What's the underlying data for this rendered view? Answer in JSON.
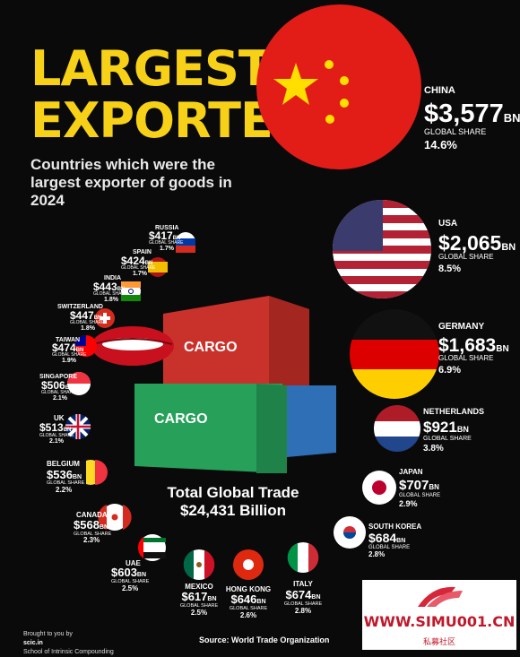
{
  "header": {
    "title_line1": "LARGEST",
    "title_line2": "EXPORTERS",
    "subtitle": "Countries which were the largest exporter of goods in 2024"
  },
  "center": {
    "total_line1": "Total Global Trade",
    "total_line2": "$24,431 Billion",
    "container_text": "CARGO"
  },
  "footer": {
    "brought_by": "Brought to you by",
    "brand": "scic.in",
    "school": "School of Intrinsic Compounding",
    "source": "Source: World Trade Organization"
  },
  "watermark": {
    "url": "WWW.SIMU001.CN",
    "sub": "私募社区"
  },
  "colors": {
    "title": "#f7d117",
    "background": "#0a0a0a"
  },
  "chart_data": {
    "type": "bubble",
    "value_unit": "BN",
    "share_label": "GLOBAL SHARE",
    "items": [
      {
        "country": "CHINA",
        "value_label": "$3,577",
        "value": 3577,
        "share": "14.6%",
        "flag": "china"
      },
      {
        "country": "USA",
        "value_label": "$2,065",
        "value": 2065,
        "share": "8.5%",
        "flag": "usa"
      },
      {
        "country": "GERMANY",
        "value_label": "$1,683",
        "value": 1683,
        "share": "6.9%",
        "flag": "germany"
      },
      {
        "country": "NETHERLANDS",
        "value_label": "$921",
        "value": 921,
        "share": "3.8%",
        "flag": "netherlands"
      },
      {
        "country": "JAPAN",
        "value_label": "$707",
        "value": 707,
        "share": "2.9%",
        "flag": "japan"
      },
      {
        "country": "SOUTH KOREA",
        "value_label": "$684",
        "value": 684,
        "share": "2.8%",
        "flag": "south-korea"
      },
      {
        "country": "ITALY",
        "value_label": "$674",
        "value": 674,
        "share": "2.8%",
        "flag": "italy"
      },
      {
        "country": "HONG KONG",
        "value_label": "$646",
        "value": 646,
        "share": "2.6%",
        "flag": "hong-kong"
      },
      {
        "country": "MEXICO",
        "value_label": "$617",
        "value": 617,
        "share": "2.5%",
        "flag": "mexico"
      },
      {
        "country": "UAE",
        "value_label": "$603",
        "value": 603,
        "share": "2.5%",
        "flag": "uae"
      },
      {
        "country": "CANADA",
        "value_label": "$568",
        "value": 568,
        "share": "2.3%",
        "flag": "canada"
      },
      {
        "country": "BELGIUM",
        "value_label": "$536",
        "value": 536,
        "share": "2.2%",
        "flag": "belgium"
      },
      {
        "country": "UK",
        "value_label": "$513",
        "value": 513,
        "share": "2.1%",
        "flag": "uk"
      },
      {
        "country": "SINGAPORE",
        "value_label": "$506",
        "value": 506,
        "share": "2.1%",
        "flag": "singapore"
      },
      {
        "country": "TAIWAN",
        "value_label": "$474",
        "value": 474,
        "share": "1.9%",
        "flag": "taiwan"
      },
      {
        "country": "SWITZERLAND",
        "value_label": "$447",
        "value": 447,
        "share": "1.8%",
        "flag": "switzerland"
      },
      {
        "country": "INDIA",
        "value_label": "$443",
        "value": 443,
        "share": "1.8%",
        "flag": "india"
      },
      {
        "country": "SPAIN",
        "value_label": "$424",
        "value": 424,
        "share": "1.7%",
        "flag": "spain"
      },
      {
        "country": "RUSSIA",
        "value_label": "$417",
        "value": 417,
        "share": "1.7%",
        "flag": "russia"
      }
    ]
  }
}
